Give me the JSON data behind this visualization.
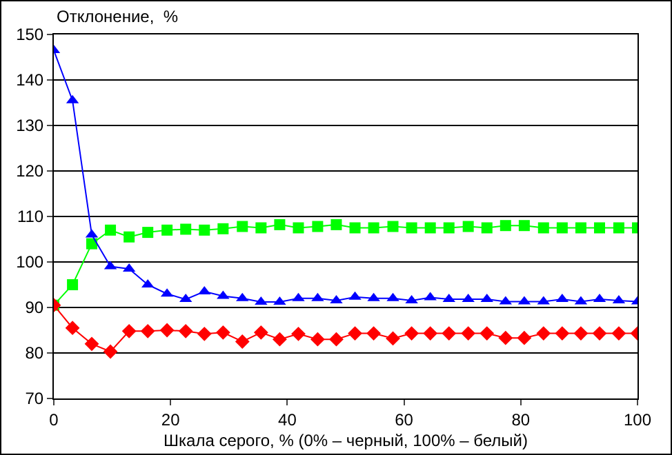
{
  "chart_data": {
    "type": "line",
    "ylabel": "Отклонение,  %",
    "xlabel": "Шкала серого, % (0% – черный, 100% – белый)",
    "x": [
      0,
      3.2,
      6.5,
      9.7,
      12.9,
      16.1,
      19.4,
      22.6,
      25.8,
      29,
      32.3,
      35.5,
      38.7,
      41.9,
      45.2,
      48.4,
      51.6,
      54.8,
      58.1,
      61.3,
      64.5,
      67.7,
      71,
      74.2,
      77.4,
      80.6,
      83.9,
      87.1,
      90.3,
      93.5,
      96.8,
      100
    ],
    "xlim": [
      0,
      100
    ],
    "xticks": [
      0,
      20,
      40,
      60,
      80,
      100
    ],
    "ylim": [
      70,
      150
    ],
    "yticks": [
      70,
      80,
      90,
      100,
      110,
      120,
      130,
      140,
      150
    ],
    "grid": "y",
    "series": [
      {
        "color": "#00ff00",
        "marker": "square",
        "values": [
          90.5,
          95,
          104,
          107,
          105.5,
          106.5,
          107,
          107.2,
          107,
          107.3,
          107.8,
          107.5,
          108.2,
          107.5,
          107.8,
          108.2,
          107.5,
          107.5,
          107.8,
          107.5,
          107.5,
          107.5,
          107.8,
          107.5,
          108,
          108,
          107.5,
          107.5,
          107.5,
          107.5,
          107.5,
          107.5
        ]
      },
      {
        "color": "#0000ff",
        "marker": "triangle",
        "values": [
          146.5,
          135.5,
          106,
          99,
          98.5,
          95,
          93,
          91.8,
          93.5,
          92.5,
          92,
          91.2,
          91.2,
          92,
          92,
          91.5,
          92.3,
          92,
          92,
          91.5,
          92.2,
          91.8,
          91.8,
          91.8,
          91.3,
          91.3,
          91.3,
          91.8,
          91.3,
          91.8,
          91.5,
          91.3
        ]
      },
      {
        "color": "#ff0000",
        "marker": "diamond",
        "values": [
          90.5,
          85.5,
          82,
          80.3,
          84.8,
          84.8,
          85,
          84.8,
          84.2,
          84.5,
          82.5,
          84.5,
          83,
          84.2,
          83,
          83,
          84.3,
          84.3,
          83.2,
          84.3,
          84.3,
          84.3,
          84.3,
          84.3,
          83.3,
          83.3,
          84.3,
          84.3,
          84.3,
          84.3,
          84.3,
          84.3
        ]
      }
    ]
  }
}
